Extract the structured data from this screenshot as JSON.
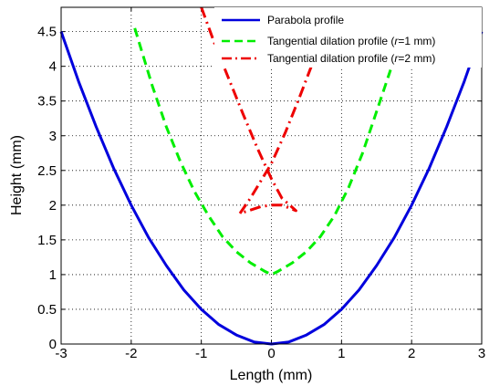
{
  "chart_data": {
    "type": "line",
    "xlabel": "Length (mm)",
    "ylabel": "Height (mm)",
    "xlim": [
      -3,
      3
    ],
    "ylim": [
      0,
      4.85
    ],
    "xticks": [
      -3,
      -2,
      -1,
      0,
      1,
      2,
      3
    ],
    "yticks": [
      0,
      0.5,
      1,
      1.5,
      2,
      2.5,
      3,
      3.5,
      4,
      4.5
    ],
    "xtick_labels": [
      "-3",
      "-2",
      "-1",
      "0",
      "1",
      "2",
      "3"
    ],
    "ytick_labels": [
      "0",
      "0.5",
      "1",
      "1.5",
      "2",
      "2.5",
      "3",
      "3.5",
      "4",
      "4.5"
    ],
    "grid": true,
    "legend_position": "top-right",
    "series": [
      {
        "name": "Parabola profile",
        "color": "#0000dd",
        "style": "solid",
        "x": [
          -3,
          -2.75,
          -2.5,
          -2.25,
          -2,
          -1.75,
          -1.5,
          -1.25,
          -1,
          -0.75,
          -0.5,
          -0.25,
          0,
          0.25,
          0.5,
          0.75,
          1,
          1.25,
          1.5,
          1.75,
          2,
          2.25,
          2.5,
          2.75,
          3
        ],
        "y": [
          4.5,
          3.78,
          3.13,
          2.53,
          2.0,
          1.53,
          1.13,
          0.78,
          0.5,
          0.28,
          0.13,
          0.03,
          0,
          0.03,
          0.13,
          0.28,
          0.5,
          0.78,
          1.13,
          1.53,
          2.0,
          2.53,
          3.13,
          3.78,
          4.5
        ]
      },
      {
        "name": "Tangential dilation profile (r=1 mm)",
        "name_parts": [
          "Tangential dilation profile (",
          "r",
          "=1 mm)"
        ],
        "color": "#00ee00",
        "style": "dashed",
        "x": [
          -1.95,
          -1.7,
          -1.5,
          -1.3,
          -1.1,
          -0.9,
          -0.7,
          -0.5,
          -0.3,
          -0.1,
          0,
          0.1,
          0.3,
          0.5,
          0.7,
          0.9,
          1.1,
          1.3,
          1.5,
          1.7
        ],
        "y": [
          4.55,
          3.72,
          3.13,
          2.63,
          2.2,
          1.85,
          1.55,
          1.33,
          1.17,
          1.05,
          1.0,
          1.05,
          1.17,
          1.33,
          1.55,
          1.85,
          2.25,
          2.75,
          3.35,
          3.95
        ]
      },
      {
        "name": "Tangential dilation profile (r=2 mm)",
        "name_parts": [
          "Tangential dilation profile (",
          "r",
          "=2 mm)"
        ],
        "color": "#ee0000",
        "style": "dashdot",
        "x": [
          -1.0,
          -0.8,
          -0.6,
          -0.4,
          -0.2,
          0,
          0.15,
          0.35,
          0.15,
          0,
          -0.15,
          -0.45,
          -0.3,
          -0.15,
          0,
          0.2,
          0.4,
          0.6
        ],
        "y": [
          4.85,
          4.3,
          3.8,
          3.3,
          2.82,
          2.38,
          2.1,
          1.92,
          2.0,
          2.0,
          1.98,
          1.88,
          2.1,
          2.35,
          2.6,
          3.05,
          3.55,
          4.08
        ]
      }
    ]
  }
}
